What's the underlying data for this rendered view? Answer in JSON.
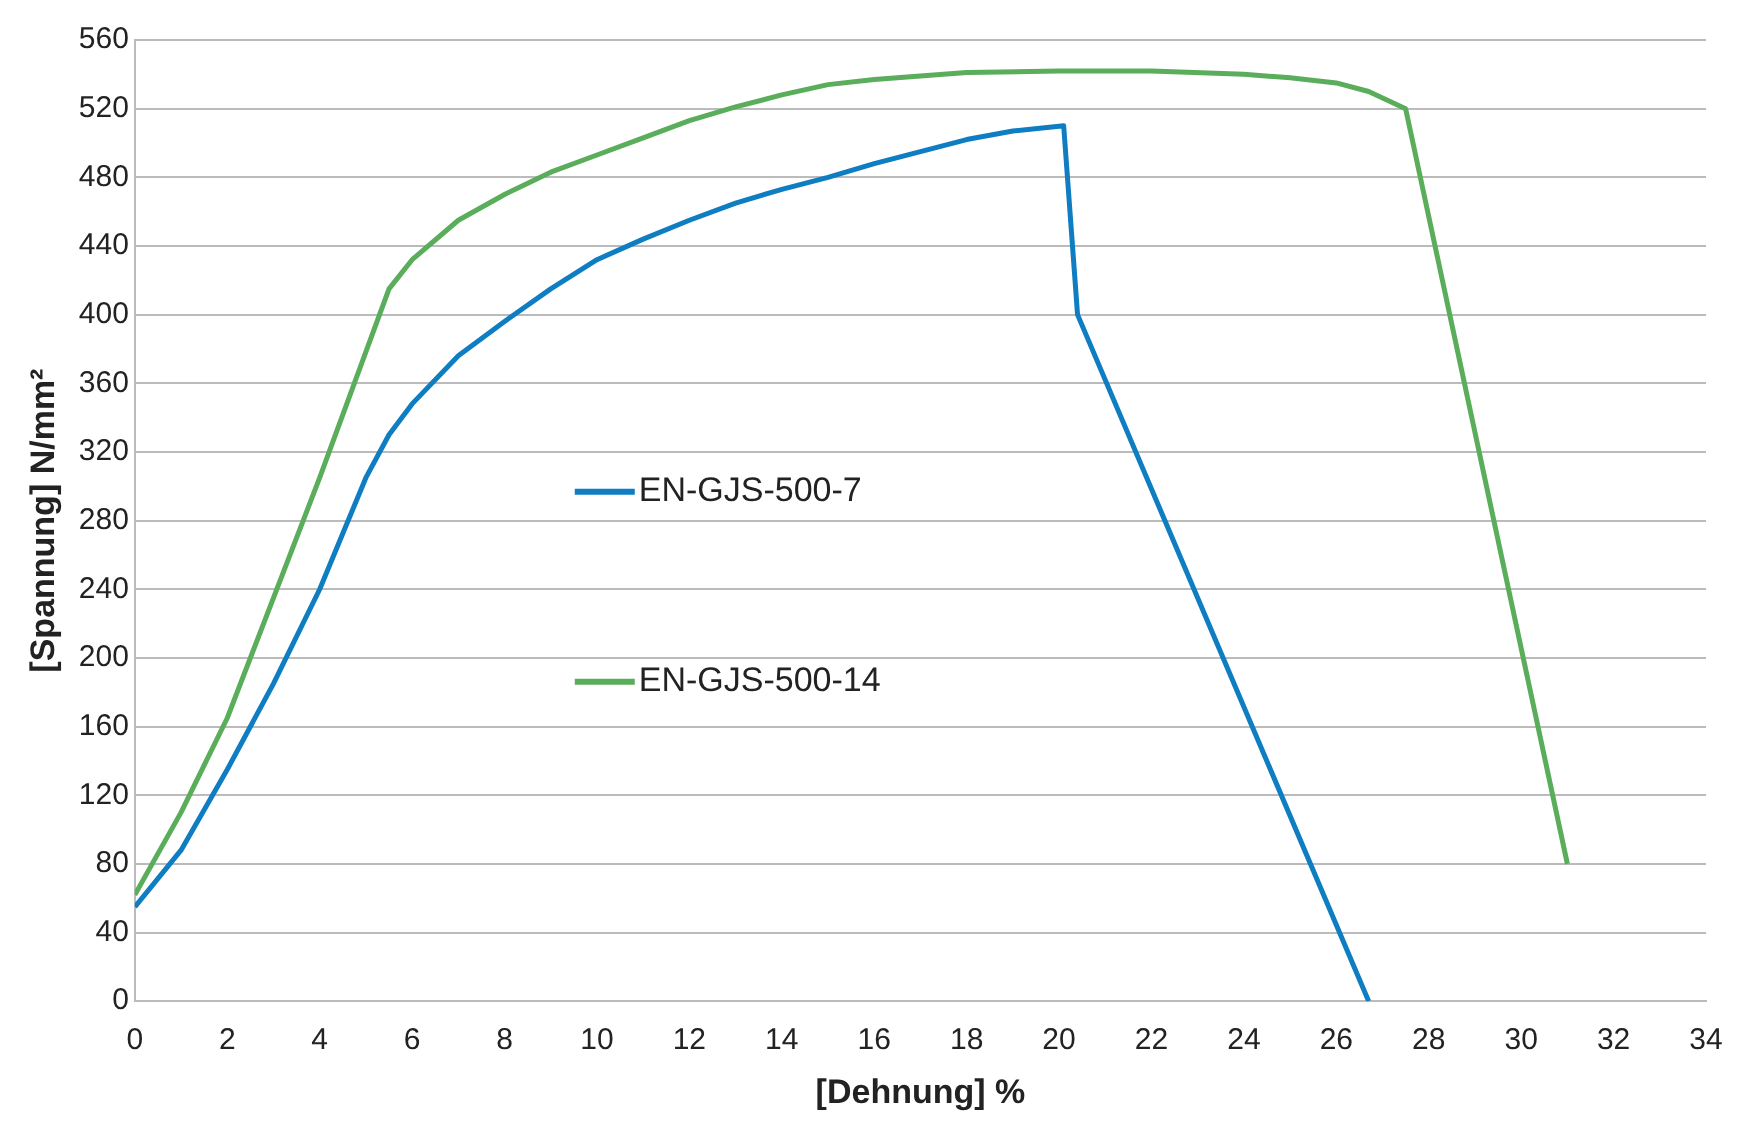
{
  "chart_data": {
    "type": "line",
    "xlabel": "[Dehnung] %",
    "ylabel": "[Spannung] N/mm²",
    "xlim": [
      0,
      34
    ],
    "xticks": [
      0,
      2,
      4,
      6,
      8,
      10,
      12,
      14,
      16,
      18,
      20,
      22,
      24,
      26,
      28,
      30,
      32,
      34
    ],
    "ylim": [
      0,
      560
    ],
    "yticks": [
      0,
      40,
      80,
      120,
      160,
      200,
      240,
      280,
      320,
      360,
      400,
      440,
      480,
      520,
      560
    ],
    "grid": "y",
    "legend": "left",
    "marker": "none",
    "line_style": "solid",
    "series": [
      {
        "name": "EN-GJS-500-7",
        "color": "#0e7dc2",
        "x": [
          0,
          1,
          2,
          3,
          4,
          5,
          5.5,
          6,
          7,
          8,
          9,
          10,
          11,
          12,
          13,
          14,
          15,
          16,
          17,
          18,
          19,
          20.1,
          20.4,
          26.7
        ],
        "values": [
          55,
          88,
          135,
          185,
          240,
          305,
          330,
          348,
          376,
          396,
          415,
          432,
          444,
          455,
          465,
          473,
          480,
          488,
          495,
          502,
          507,
          510,
          400,
          0
        ]
      },
      {
        "name": "EN-GJS-500-14",
        "color": "#5aad5a",
        "x": [
          0,
          1,
          2,
          3,
          4,
          5.5,
          6,
          7,
          8,
          9,
          10,
          11,
          12,
          13,
          14,
          15,
          16,
          17,
          18,
          20,
          22,
          24,
          25,
          26,
          26.7,
          27.5,
          31
        ],
        "values": [
          62,
          110,
          165,
          235,
          305,
          415,
          432,
          455,
          470,
          483,
          493,
          503,
          513,
          521,
          528,
          534,
          537,
          539,
          541,
          542,
          542,
          540,
          538,
          535,
          530,
          520,
          80
        ]
      }
    ]
  }
}
